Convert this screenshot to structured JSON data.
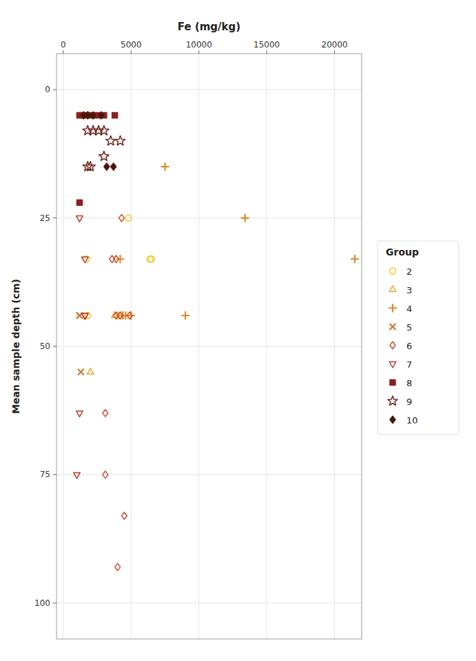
{
  "chart_data": {
    "type": "scatter",
    "xlabel": "Fe (mg/kg)",
    "ylabel": "Mean sample depth (cm)",
    "legend_title": "Group",
    "legend": "right",
    "grid": true,
    "xlim": [
      -500,
      22000
    ],
    "ylim": [
      107,
      -7
    ],
    "xticks": [
      0,
      5000,
      10000,
      15000,
      20000
    ],
    "yticks": [
      0,
      25,
      50,
      75,
      100
    ],
    "series": [
      {
        "name": "2",
        "color": "#F5C518",
        "marker": "circle-open",
        "x": [
          4800,
          1700,
          6400,
          6500,
          1800,
          4100
        ],
        "values": [
          25,
          33,
          33,
          33,
          44,
          44
        ]
      },
      {
        "name": "3",
        "color": "#F0A030",
        "marker": "triangle-up-open",
        "x": [
          1800,
          4200,
          3800,
          2000
        ],
        "values": [
          5,
          44,
          44,
          55
        ]
      },
      {
        "name": "4",
        "color": "#E08828",
        "marker": "plus",
        "x": [
          7500,
          13400,
          4200,
          4400,
          4600,
          5000,
          21500,
          9000
        ],
        "values": [
          15,
          25,
          33,
          44,
          44,
          44,
          33,
          44
        ]
      },
      {
        "name": "5",
        "color": "#C87A30",
        "marker": "x",
        "x": [
          1200,
          1200,
          1300
        ],
        "values": [
          44,
          44,
          55
        ]
      },
      {
        "name": "6",
        "color": "#C85030",
        "marker": "diamond-open",
        "x": [
          4300,
          3600,
          3900,
          4900,
          4200,
          3900,
          3100,
          3100,
          4500,
          4000
        ],
        "values": [
          25,
          33,
          33,
          44,
          44,
          44,
          63,
          75,
          83,
          93
        ]
      },
      {
        "name": "7",
        "color": "#B83828",
        "marker": "triangle-down-open",
        "x": [
          1200,
          1600,
          1600,
          1600,
          1200,
          1000
        ],
        "values": [
          25,
          33,
          44,
          44,
          63,
          75
        ]
      },
      {
        "name": "8",
        "color": "#8B2020",
        "marker": "square",
        "x": [
          1200,
          1400,
          1800,
          2100,
          2500,
          3000,
          3800,
          1200
        ],
        "values": [
          5,
          5,
          5,
          5,
          5,
          5,
          5,
          22
        ]
      },
      {
        "name": "9",
        "color": "#6B2218",
        "marker": "star-open",
        "x": [
          1800,
          2200,
          2600,
          3000,
          3500,
          4200,
          3000,
          2000,
          1800
        ],
        "values": [
          8,
          8,
          8,
          8,
          10,
          10,
          13,
          15,
          15
        ]
      },
      {
        "name": "10",
        "color": "#4A1808",
        "marker": "diamond",
        "x": [
          1500,
          1800,
          2200,
          2800,
          3200,
          3700
        ],
        "values": [
          5,
          5,
          5,
          5,
          15,
          15
        ]
      }
    ]
  }
}
